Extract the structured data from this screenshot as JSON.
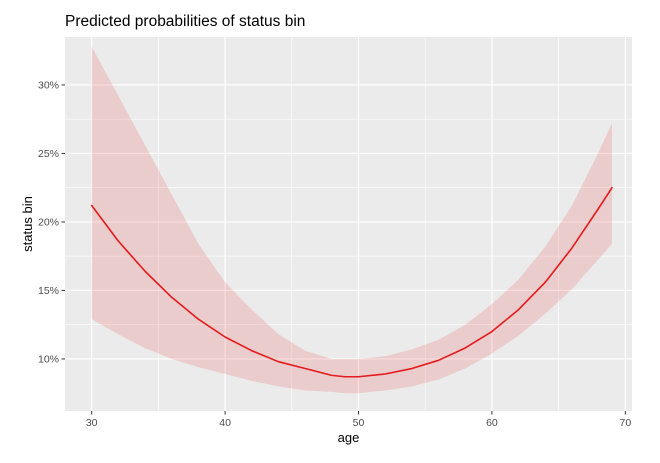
{
  "chart_data": {
    "type": "line",
    "title": "Predicted probabilities of status bin",
    "xlabel": "age",
    "ylabel": "status bin",
    "xlim": [
      28,
      70.5
    ],
    "ylim": [
      6.2,
      33.5
    ],
    "x_ticks": [
      30,
      40,
      50,
      60,
      70
    ],
    "x_tick_labels": [
      "30",
      "40",
      "50",
      "60",
      "70"
    ],
    "y_ticks": [
      10,
      15,
      20,
      25,
      30
    ],
    "y_tick_labels": [
      "10%",
      "15%",
      "20%",
      "25%",
      "30%"
    ],
    "grid": true,
    "legend": "none",
    "series": [
      {
        "x": [
          30,
          32,
          34,
          36,
          38,
          40,
          42,
          44,
          46,
          48,
          49,
          50,
          52,
          54,
          56,
          58,
          60,
          62,
          64,
          66,
          68,
          69
        ],
        "values": [
          21.2,
          18.6,
          16.4,
          14.5,
          12.9,
          11.6,
          10.6,
          9.8,
          9.3,
          8.8,
          8.7,
          8.7,
          8.9,
          9.3,
          9.9,
          10.8,
          12.0,
          13.6,
          15.6,
          18.1,
          21.0,
          22.5
        ],
        "lower": [
          12.9,
          11.8,
          10.8,
          10.0,
          9.4,
          8.9,
          8.4,
          8.0,
          7.7,
          7.6,
          7.5,
          7.5,
          7.7,
          8.0,
          8.5,
          9.3,
          10.4,
          11.7,
          13.3,
          15.1,
          17.3,
          18.4
        ],
        "upper": [
          32.8,
          29.2,
          25.6,
          22.0,
          18.4,
          15.6,
          13.6,
          11.8,
          10.6,
          10.0,
          10.0,
          10.0,
          10.2,
          10.7,
          11.4,
          12.5,
          14.0,
          15.8,
          18.2,
          21.2,
          25.1,
          27.2
        ],
        "color": "#e41a1c",
        "band_color": "#e41a1c"
      }
    ],
    "colors": {
      "panel_background": "#ebebeb",
      "grid_major": "#ffffff",
      "line": "#e41a1c",
      "ribbon": "#e41a1c"
    }
  }
}
